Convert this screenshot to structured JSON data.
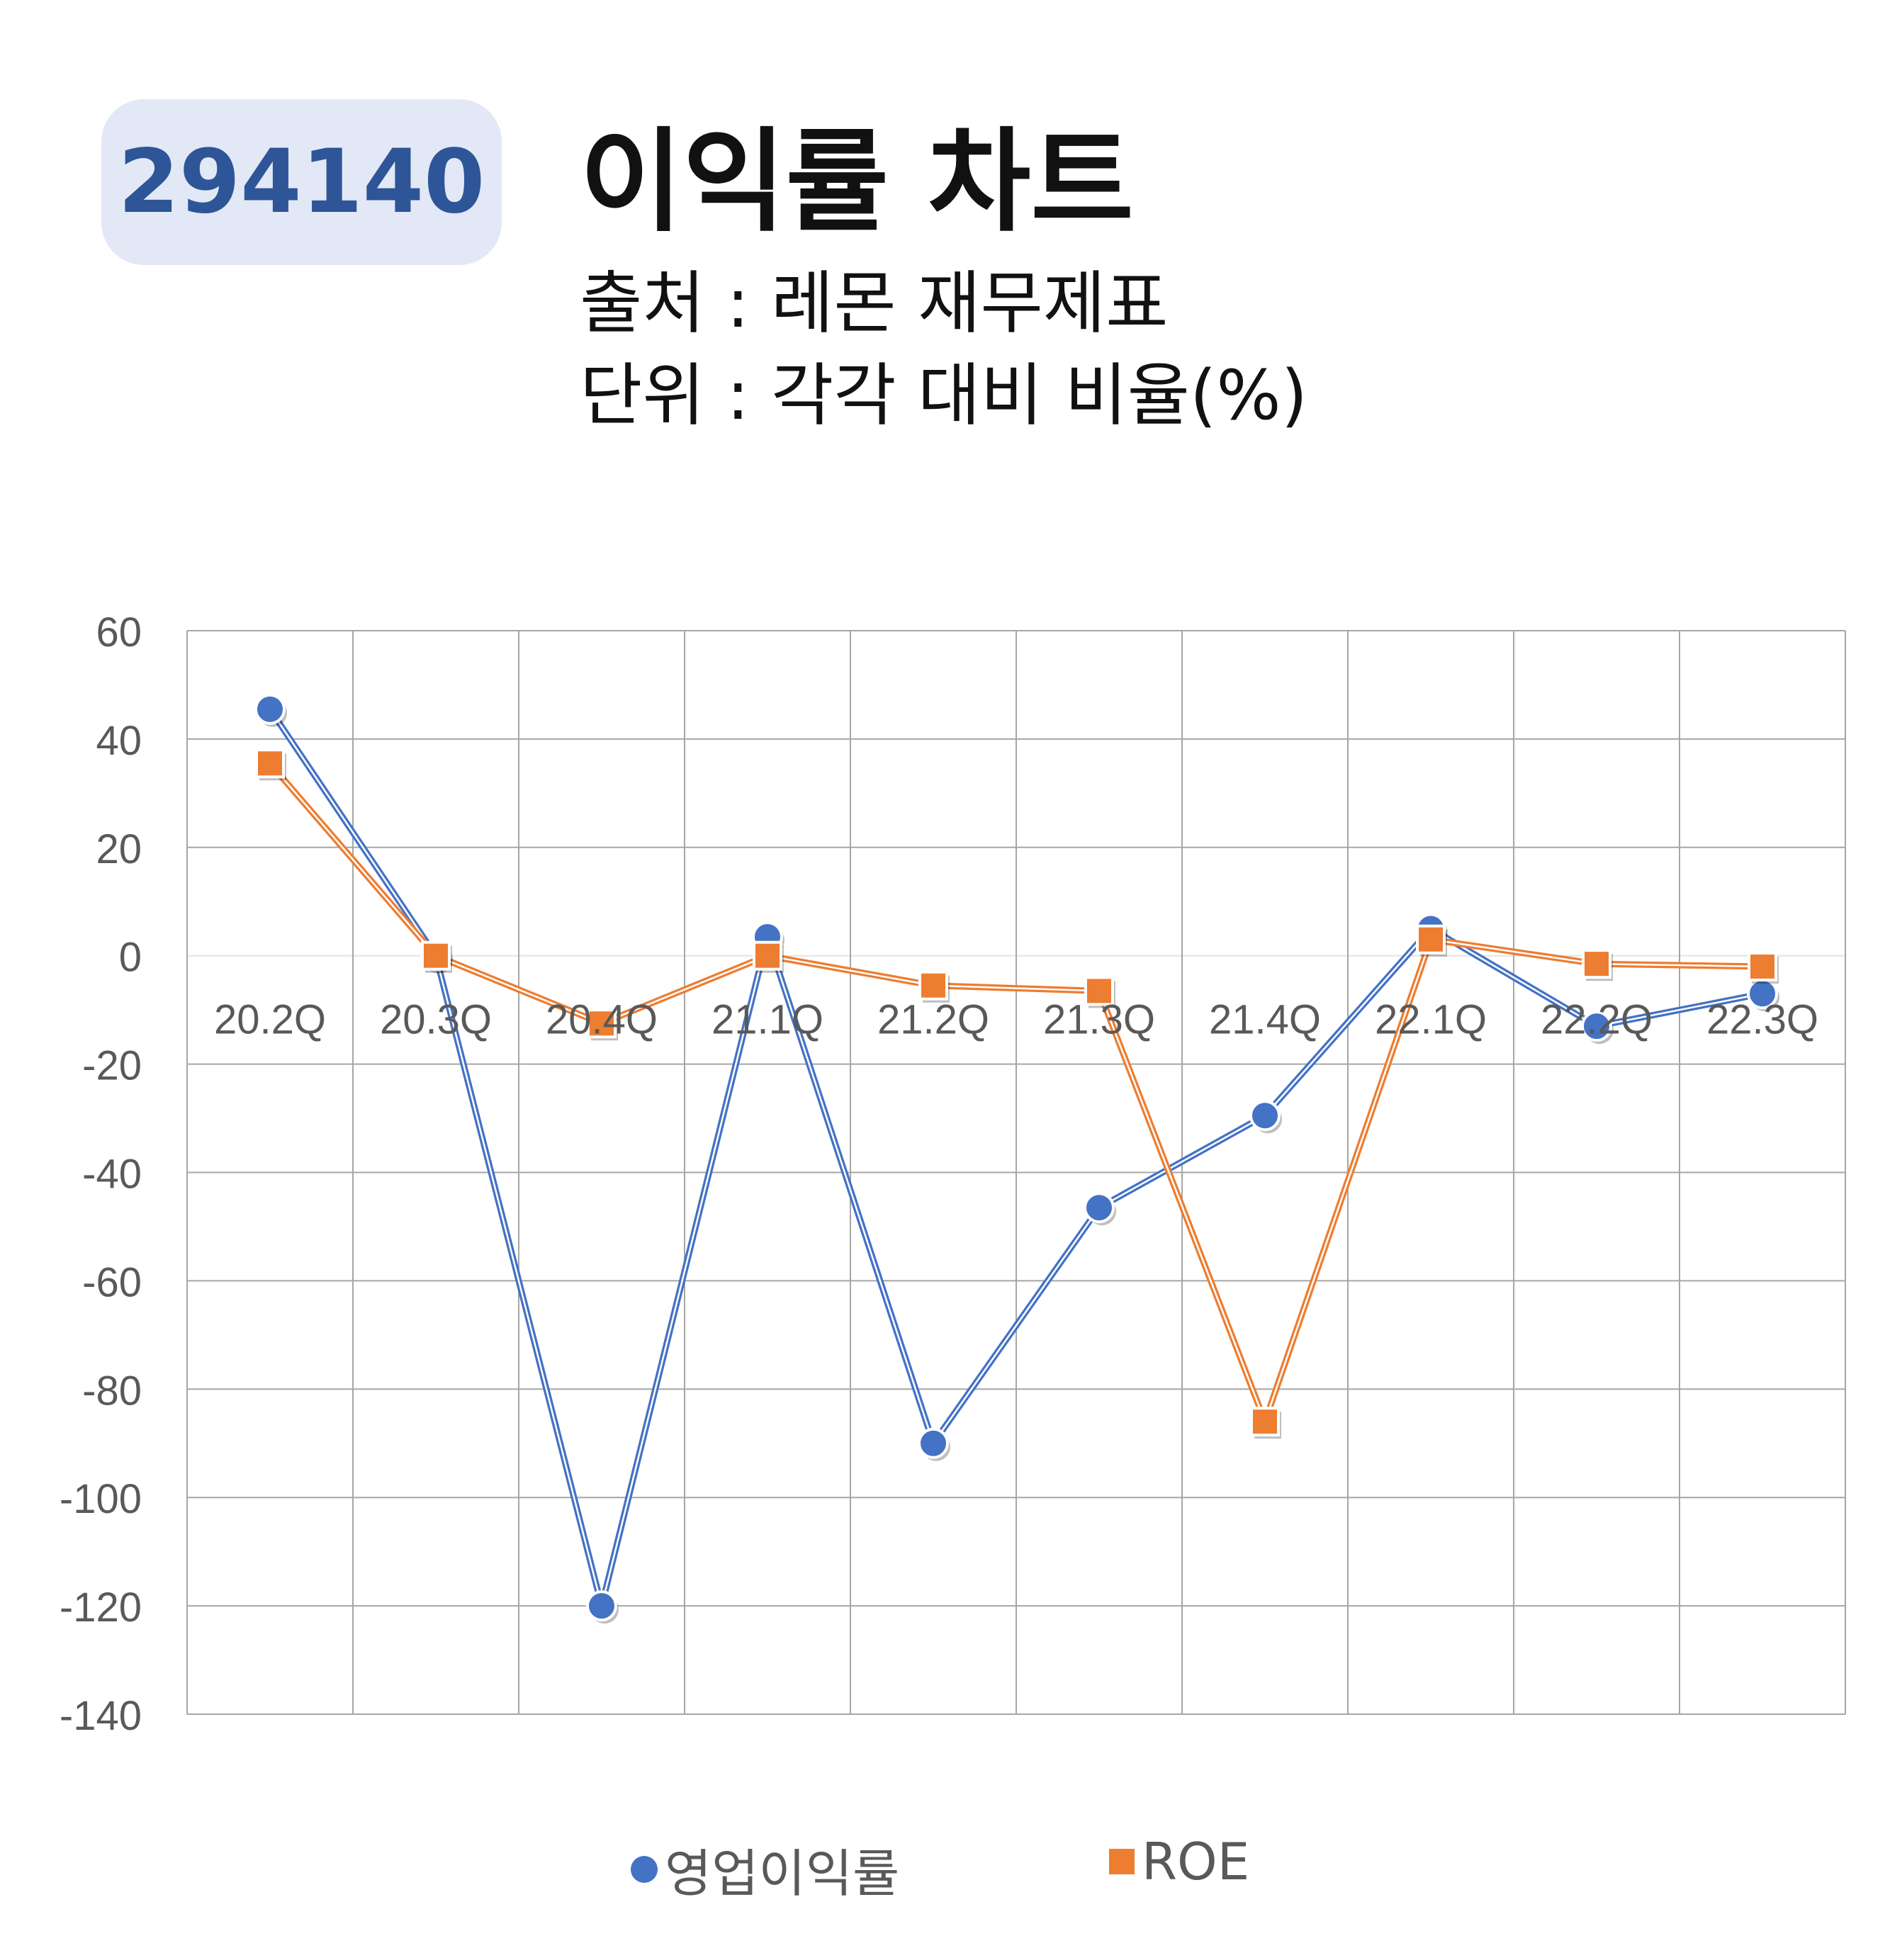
{
  "header": {
    "code": "294140",
    "title": "이익률 차트",
    "source": "출처 : 레몬 재무제표",
    "unit": "단위 : 각각 대비 비율(%)"
  },
  "chart_data": {
    "type": "line",
    "categories": [
      "20.2Q",
      "20.3Q",
      "20.4Q",
      "21.1Q",
      "21.2Q",
      "21.3Q",
      "21.4Q",
      "22.1Q",
      "22.2Q",
      "22.3Q"
    ],
    "series": [
      {
        "name": "영업이익률",
        "values": [
          45.5,
          0,
          -120,
          3.5,
          -90,
          -46.5,
          -29.5,
          5,
          -13,
          -7
        ],
        "color": "#4472c4",
        "marker": "circle"
      },
      {
        "name": "ROE",
        "values": [
          35.5,
          0,
          -12.5,
          0,
          -5.5,
          -6.5,
          -86,
          3,
          -1.5,
          -2
        ],
        "color": "#ed7d31",
        "marker": "square"
      }
    ],
    "ylim": [
      -140,
      60
    ],
    "yticks": [
      60,
      40,
      20,
      0,
      -20,
      -40,
      -60,
      -80,
      -100,
      -120,
      -140
    ],
    "grid": true,
    "legend": "bottom",
    "title": "",
    "xlabel": "",
    "ylabel": ""
  }
}
